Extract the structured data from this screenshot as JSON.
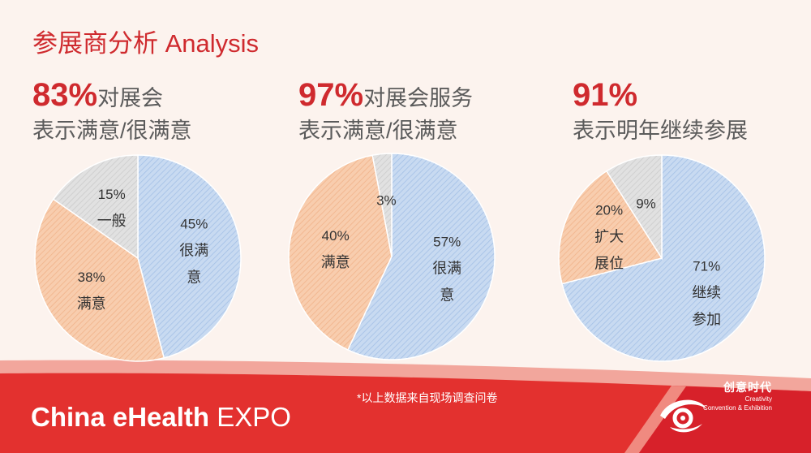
{
  "page_title": "参展商分析 Analysis",
  "colors": {
    "accent": "#cf2a2e",
    "text_gray": "#5b5b5b",
    "label_text": "#333333",
    "background": "#fcf3ee",
    "band_light": "#f2a69c",
    "band_red": "#e3312f",
    "band_dark": "#d7212a"
  },
  "chart_data": [
    {
      "type": "pie",
      "headline_value": "83%",
      "headline_text": "对展会",
      "subtitle": "表示满意/很满意",
      "categories": [
        "很满意",
        "满意",
        "一般"
      ],
      "values": [
        45,
        38,
        15
      ],
      "value_labels": [
        "45%",
        "38%",
        "15%"
      ],
      "colors": [
        "#c8daf1",
        "#f8cdae",
        "#e1e1e1"
      ],
      "hatch_colors": [
        "#a3c0e6",
        "#f1b38a",
        "#cbcbcb"
      ]
    },
    {
      "type": "pie",
      "headline_value": "97%",
      "headline_text": "对展会服务",
      "subtitle": "表示满意/很满意",
      "categories": [
        "很满意",
        "满意",
        ""
      ],
      "values": [
        57,
        40,
        3
      ],
      "value_labels": [
        "57%",
        "40%",
        "3%"
      ],
      "colors": [
        "#c8daf1",
        "#f8cdae",
        "#e1e1e1"
      ],
      "hatch_colors": [
        "#a3c0e6",
        "#f1b38a",
        "#cbcbcb"
      ]
    },
    {
      "type": "pie",
      "headline_value": "91%",
      "subtitle": "表示明年继续参展",
      "categories": [
        "继续参加",
        "扩大展位",
        ""
      ],
      "values": [
        71,
        20,
        9
      ],
      "value_labels": [
        "71%",
        "20%",
        "9%"
      ],
      "colors": [
        "#c8daf1",
        "#f8cdae",
        "#e1e1e1"
      ],
      "hatch_colors": [
        "#a3c0e6",
        "#f1b38a",
        "#cbcbcb"
      ]
    }
  ],
  "footnote": "*以上数据来自现场调查问卷",
  "brand": {
    "name_main": "China eHealth",
    "name_suffix": "EXPO"
  },
  "logo": {
    "icon": "eye-swirl-icon",
    "name_cn": "创意时代",
    "name_en": "Creativity",
    "tagline": "Convention & Exhibition"
  }
}
